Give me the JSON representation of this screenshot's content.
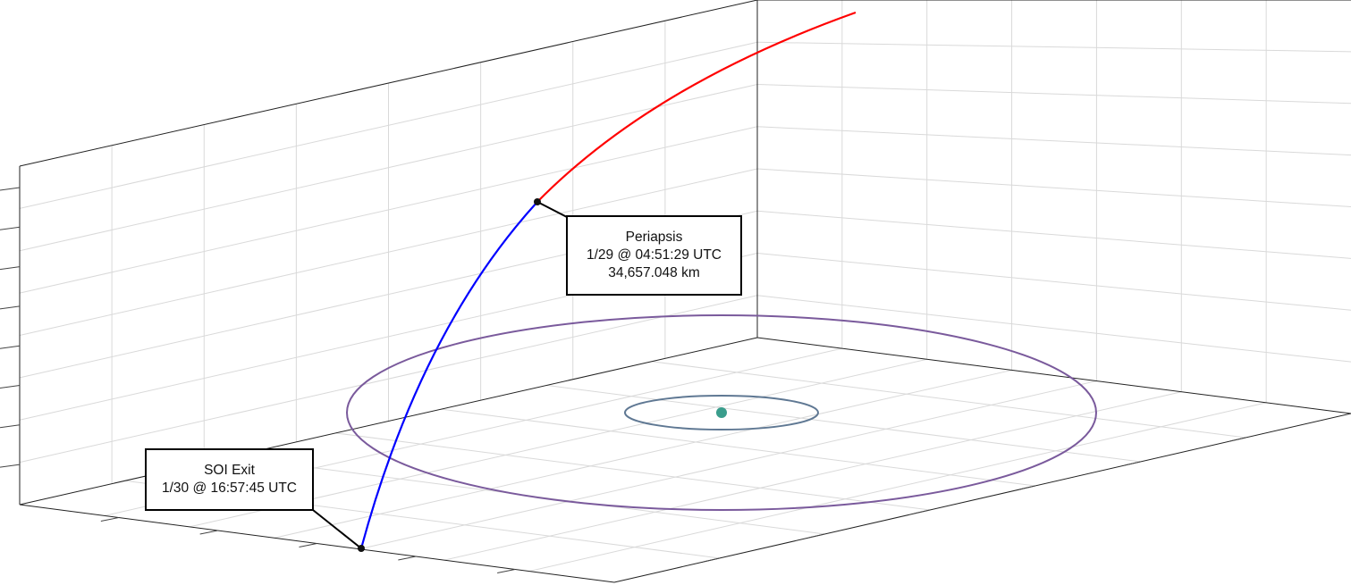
{
  "colors": {
    "arrival_trajectory": "#ff0000",
    "departure_trajectory": "#0000ff",
    "outer_orbit": "#7a5a9c",
    "inner_orbit": "#5f7893",
    "central_body": "#3a9d8c",
    "grid": "#d9d9d9",
    "box_edges": "#222222",
    "marker": "#111111"
  },
  "periapsis_label": {
    "title": "Periapsis",
    "time": "1/29 @ 04:51:29 UTC",
    "altitude": "34,657.048 km"
  },
  "soi_exit_label": {
    "title": "SOI Exit",
    "time": "1/30 @ 16:57:45 UTC"
  }
}
